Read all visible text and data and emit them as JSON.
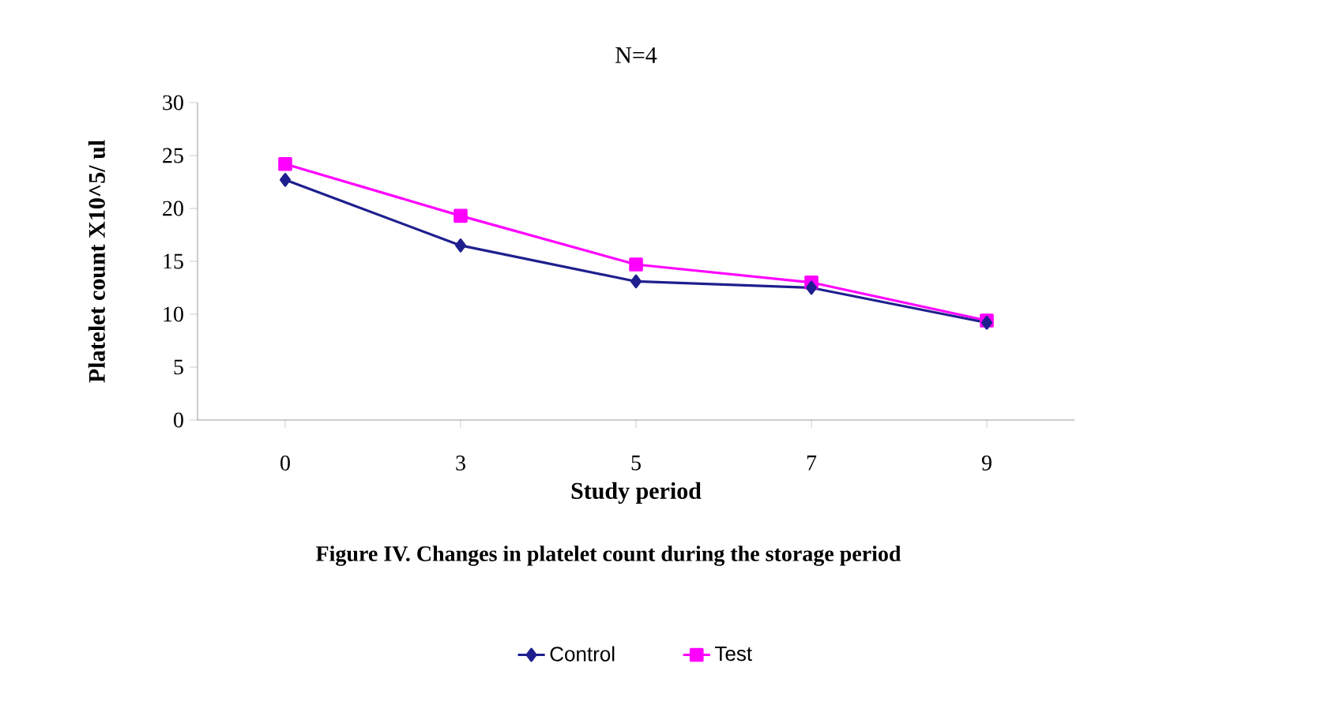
{
  "chart_data": {
    "type": "line",
    "title": "N=4",
    "xlabel": "Study period",
    "ylabel": "Platelet count X10^5/ ul",
    "annotations": [
      "Figure IV. Changes in platelet count during the storage period"
    ],
    "categories": [
      "0",
      "3",
      "5",
      "7",
      "9"
    ],
    "series": [
      {
        "name": "Control",
        "color": "#1f1f8f",
        "marker": "diamond",
        "values": [
          22.7,
          16.5,
          13.1,
          12.5,
          9.2
        ]
      },
      {
        "name": "Test",
        "color": "#ff00ff",
        "marker": "square",
        "values": [
          24.2,
          19.3,
          14.7,
          13.0,
          9.4
        ]
      }
    ],
    "ylim": [
      0,
      30
    ],
    "yticks": [
      0,
      5,
      10,
      15,
      20,
      25,
      30
    ],
    "grid": false,
    "legend": "bottom",
    "line_style": "solid"
  }
}
